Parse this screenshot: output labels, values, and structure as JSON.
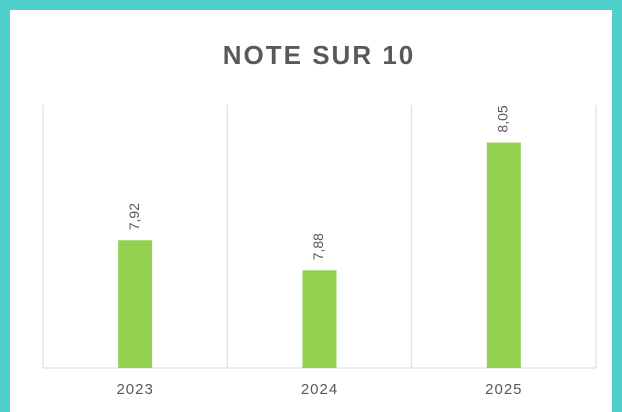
{
  "chart_data": {
    "type": "bar",
    "title": "NOTE SUR 10",
    "categories": [
      "2023",
      "2024",
      "2025"
    ],
    "values": [
      7.92,
      7.88,
      8.05
    ],
    "value_labels": [
      "7,92",
      "7,88",
      "8,05"
    ],
    "color": "#92d050",
    "ylim": [
      7.75,
      8.1
    ]
  }
}
